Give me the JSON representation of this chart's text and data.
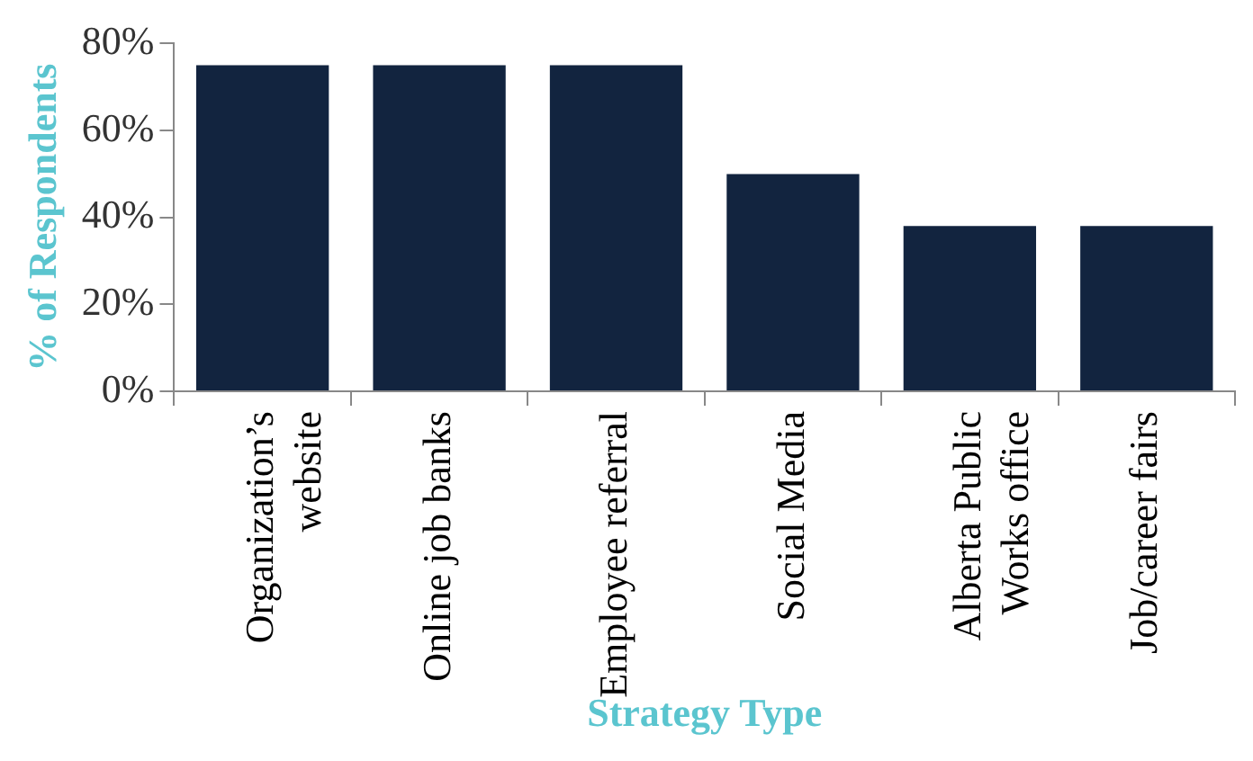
{
  "chart_data": {
    "type": "bar",
    "xlabel": "Strategy Type",
    "ylabel": "% of Respondents",
    "categories": [
      "Organization’s website",
      "Online job banks",
      "Employee referral",
      "Social Media",
      "Alberta Public Works office",
      "Job/career fairs"
    ],
    "values": [
      75,
      75,
      75,
      50,
      38,
      38
    ],
    "color": "#12243f",
    "ylim": [
      0,
      80
    ],
    "yticks": [
      {
        "value": 0,
        "label": "0%"
      },
      {
        "value": 20,
        "label": "20%"
      },
      {
        "value": 40,
        "label": "40%"
      },
      {
        "value": 60,
        "label": "60%"
      },
      {
        "value": 80,
        "label": "80%"
      }
    ],
    "grid": false,
    "legend": false
  }
}
